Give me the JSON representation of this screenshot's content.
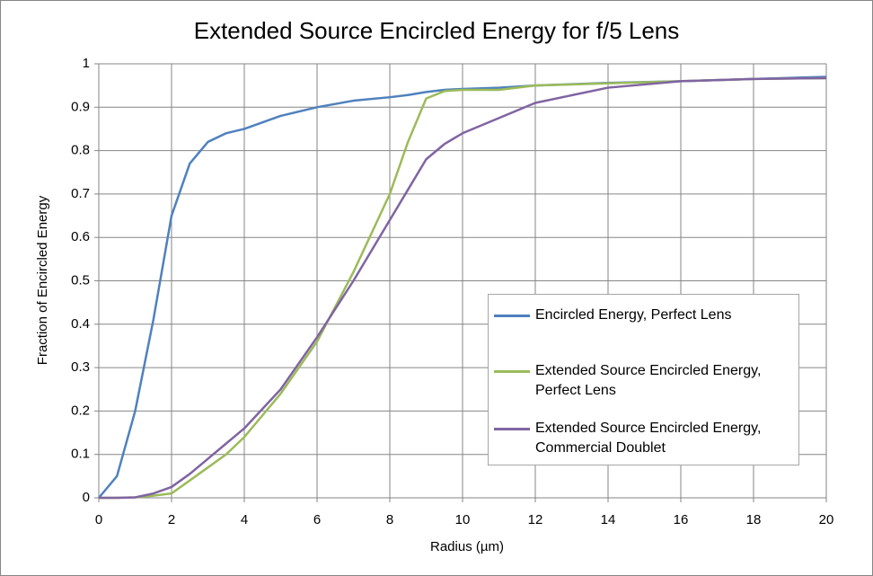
{
  "chart_data": {
    "type": "line",
    "title": "Extended Source Encircled Energy for f/5 Lens",
    "x_label": "Radius (µm)",
    "y_label": "Fraction of Encircled Energy",
    "x": [
      0,
      0.5,
      1,
      1.5,
      2,
      2.5,
      3,
      3.5,
      4,
      5,
      6,
      7,
      8,
      8.5,
      9,
      9.5,
      10,
      11,
      12,
      14,
      16,
      18,
      20
    ],
    "series": [
      {
        "name": "Encircled Energy, Perfect Lens",
        "color": "#4f81bd",
        "values": [
          0,
          0.05,
          0.2,
          0.41,
          0.65,
          0.77,
          0.82,
          0.84,
          0.85,
          0.88,
          0.9,
          0.915,
          0.923,
          0.928,
          0.935,
          0.94,
          0.942,
          0.945,
          0.95,
          0.956,
          0.96,
          0.965,
          0.97
        ]
      },
      {
        "name": "Extended Source Encircled Energy, Perfect Lens",
        "color": "#9bbb59",
        "values": [
          0,
          0,
          0.001,
          0.005,
          0.01,
          0.04,
          0.07,
          0.1,
          0.14,
          0.24,
          0.36,
          0.52,
          0.7,
          0.82,
          0.92,
          0.937,
          0.94,
          0.94,
          0.95,
          0.955,
          0.96,
          0.965,
          0.967
        ]
      },
      {
        "name": "Extended Source Encircled Energy, Commercial Doublet",
        "color": "#8064a2",
        "values": [
          0,
          0,
          0.001,
          0.01,
          0.025,
          0.055,
          0.09,
          0.125,
          0.16,
          0.25,
          0.37,
          0.5,
          0.64,
          0.71,
          0.78,
          0.815,
          0.84,
          0.875,
          0.91,
          0.945,
          0.96,
          0.965,
          0.967
        ]
      }
    ],
    "xlim": [
      0,
      20
    ],
    "xticks": [
      0,
      2,
      4,
      6,
      8,
      10,
      12,
      14,
      16,
      18,
      20
    ],
    "ylim": [
      0,
      1
    ],
    "yticks": [
      0,
      0.1,
      0.2,
      0.3,
      0.4,
      0.5,
      0.6,
      0.7,
      0.8,
      0.9,
      1
    ],
    "grid": true,
    "legend": "right"
  }
}
